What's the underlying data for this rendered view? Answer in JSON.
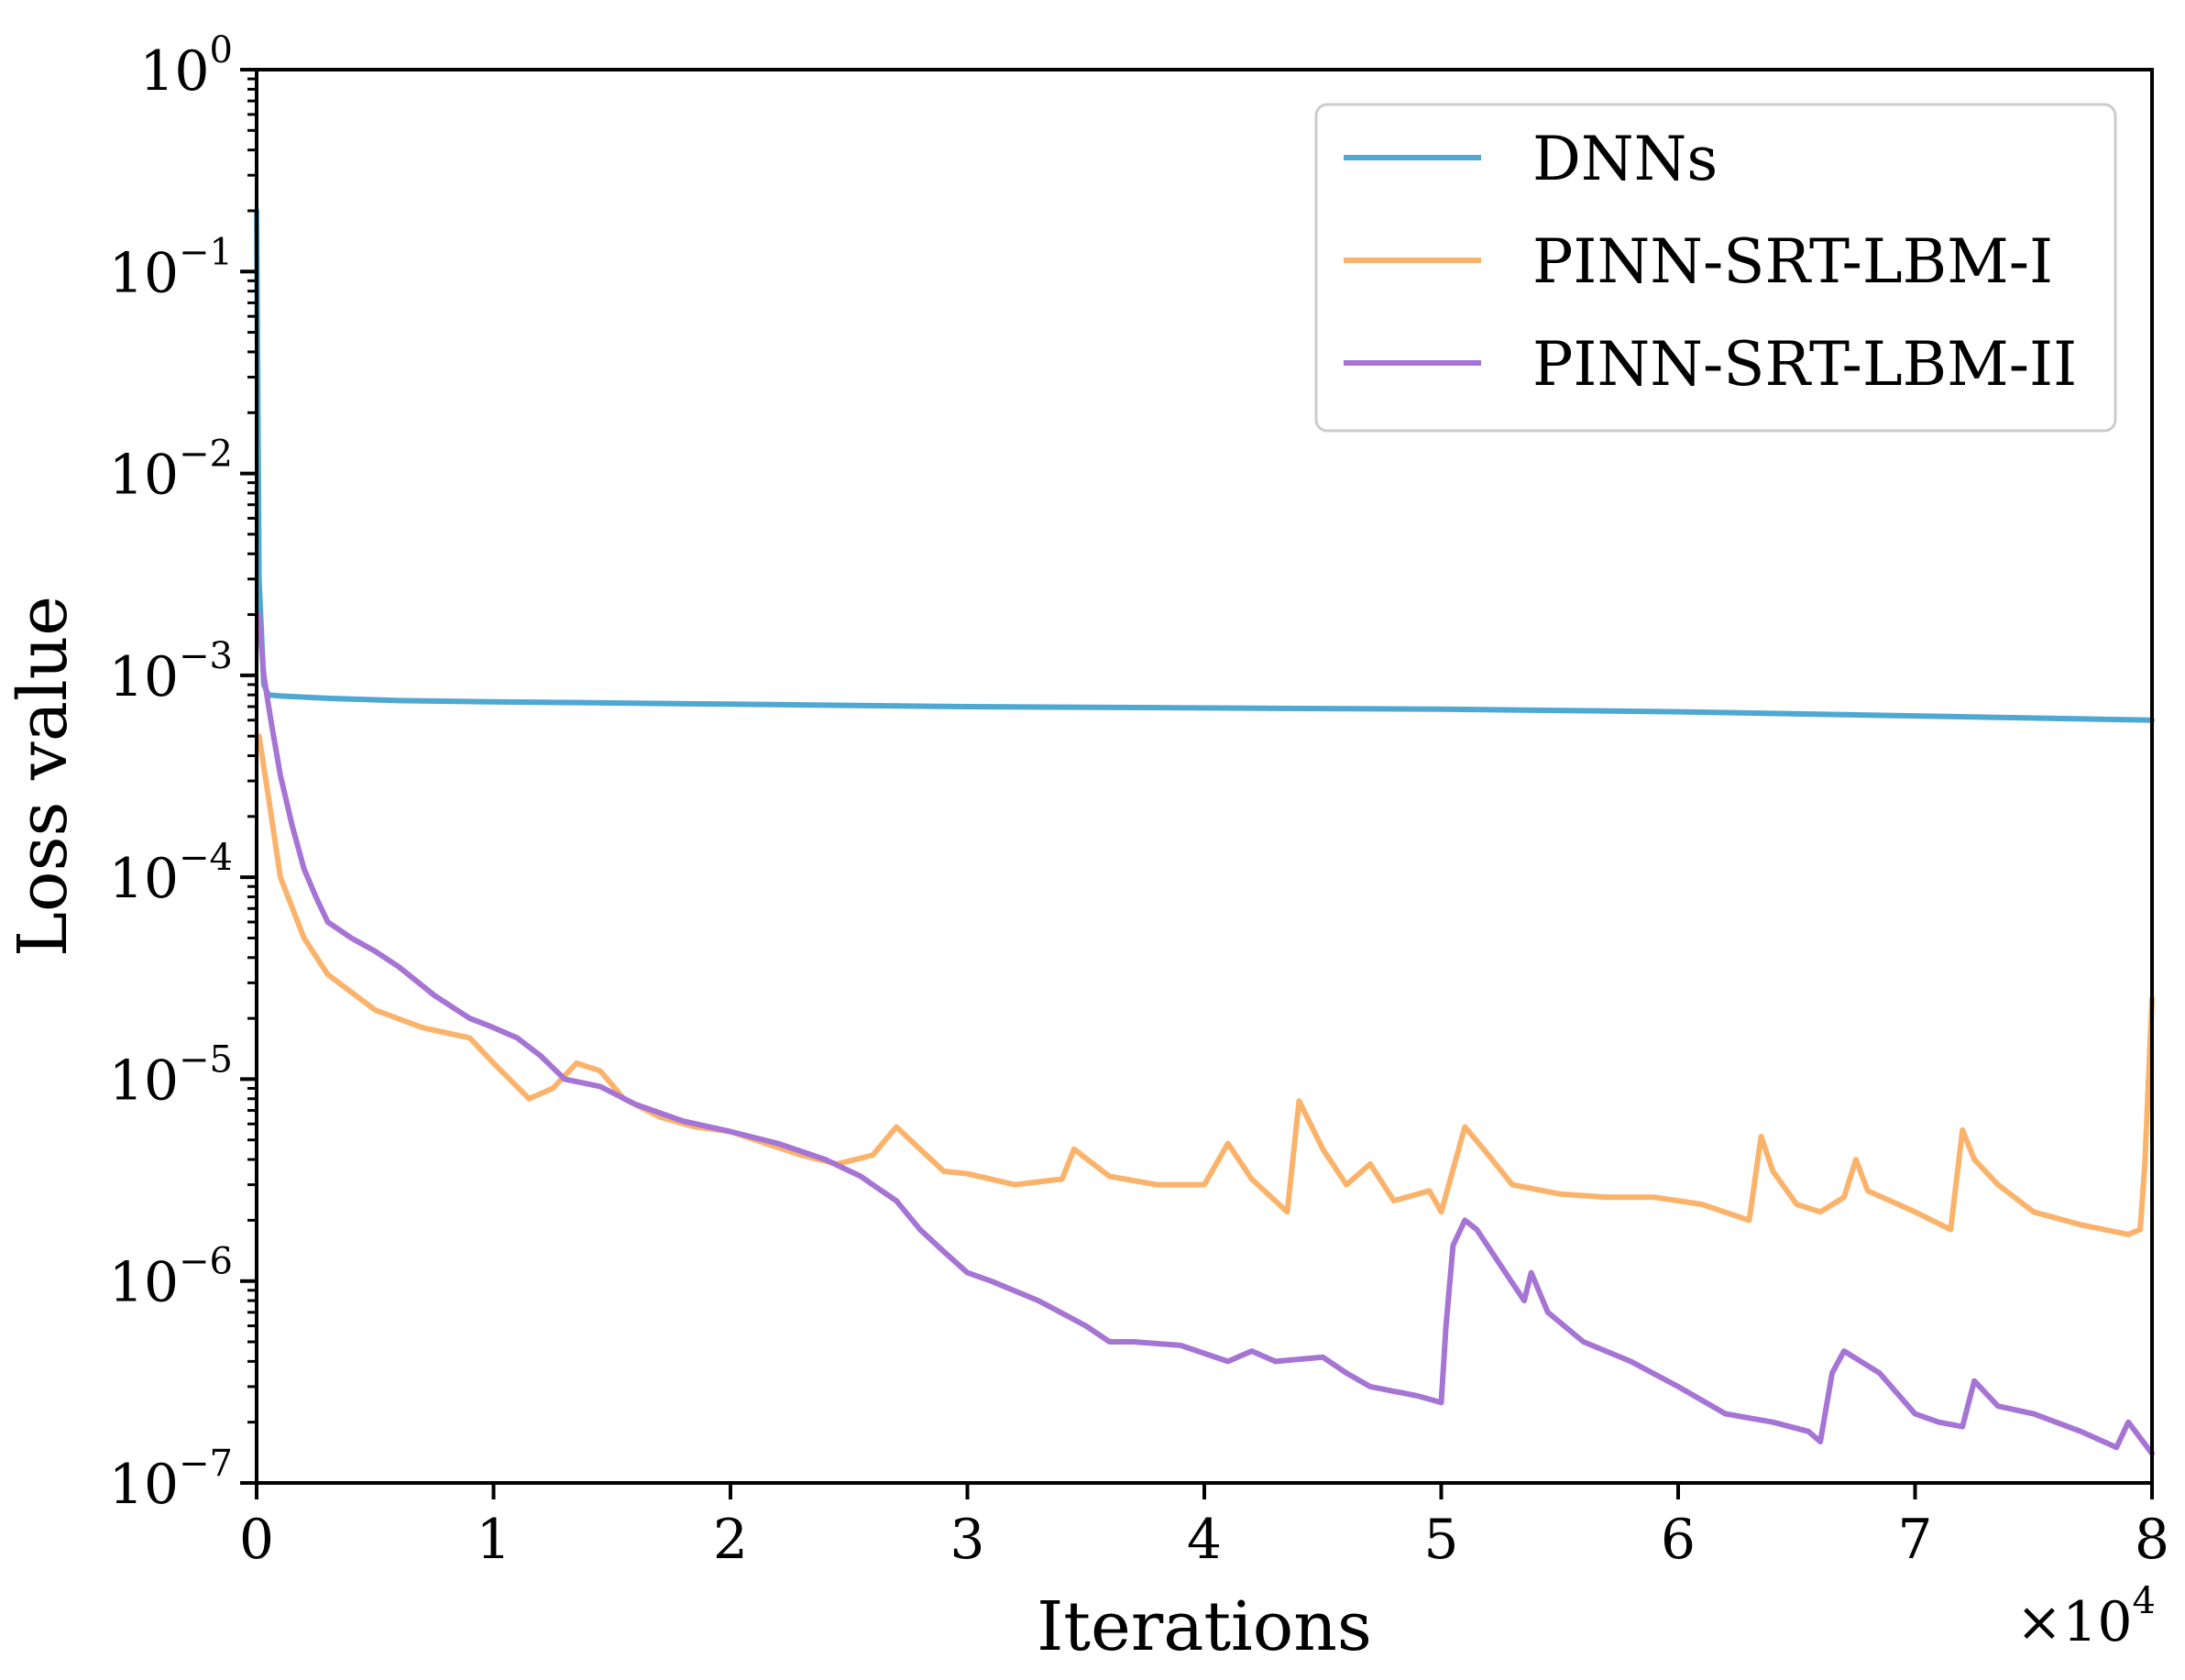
{
  "chart_data": {
    "type": "line",
    "title": "",
    "xlabel": "Iterations",
    "ylabel": "Loss value",
    "x_scale_note": "×10",
    "x_scale_exponent": "4",
    "xlim": [
      0,
      8
    ],
    "ylim": [
      1e-07,
      1
    ],
    "yscale": "log",
    "grid": false,
    "legend_position": "top-right",
    "x_ticks": [
      {
        "value": 0,
        "label": "0"
      },
      {
        "value": 1,
        "label": "1"
      },
      {
        "value": 2,
        "label": "2"
      },
      {
        "value": 3,
        "label": "3"
      },
      {
        "value": 4,
        "label": "4"
      },
      {
        "value": 5,
        "label": "5"
      },
      {
        "value": 6,
        "label": "6"
      },
      {
        "value": 7,
        "label": "7"
      },
      {
        "value": 8,
        "label": "8"
      }
    ],
    "y_ticks": [
      {
        "value": 1,
        "base": "10",
        "exp": "0"
      },
      {
        "value": 0.1,
        "base": "10",
        "exp": "−1"
      },
      {
        "value": 0.01,
        "base": "10",
        "exp": "−2"
      },
      {
        "value": 0.001,
        "base": "10",
        "exp": "−3"
      },
      {
        "value": 0.0001,
        "base": "10",
        "exp": "−4"
      },
      {
        "value": 1e-05,
        "base": "10",
        "exp": "−5"
      },
      {
        "value": 1e-06,
        "base": "10",
        "exp": "−6"
      },
      {
        "value": 1e-07,
        "base": "10",
        "exp": "−7"
      }
    ],
    "series": [
      {
        "name": "DNNs",
        "color": "#4fa8d1",
        "x": [
          0,
          0.01,
          0.03,
          0.05,
          0.1,
          0.3,
          0.6,
          1,
          2,
          3,
          4,
          5,
          6,
          7,
          8
        ],
        "y": [
          0.2,
          0.003,
          0.0009,
          0.0008,
          0.00079,
          0.00077,
          0.00075,
          0.00074,
          0.00072,
          0.0007,
          0.00069,
          0.00068,
          0.00066,
          0.00063,
          0.0006
        ]
      },
      {
        "name": "PINN-SRT-LBM-I",
        "color": "#fbb36b",
        "x": [
          0.01,
          0.05,
          0.1,
          0.2,
          0.3,
          0.5,
          0.7,
          0.9,
          1.0,
          1.15,
          1.25,
          1.35,
          1.45,
          1.55,
          1.7,
          1.85,
          2.0,
          2.15,
          2.3,
          2.45,
          2.6,
          2.7,
          2.8,
          2.9,
          3.0,
          3.2,
          3.4,
          3.45,
          3.6,
          3.8,
          4.0,
          4.1,
          4.2,
          4.35,
          4.4,
          4.5,
          4.6,
          4.7,
          4.8,
          4.95,
          5.0,
          5.1,
          5.2,
          5.3,
          5.5,
          5.7,
          5.9,
          6.1,
          6.3,
          6.35,
          6.4,
          6.5,
          6.6,
          6.7,
          6.75,
          6.8,
          7.0,
          7.15,
          7.2,
          7.25,
          7.35,
          7.5,
          7.7,
          7.9,
          7.95,
          7.97,
          8.0
        ],
        "y": [
          0.0005,
          0.00025,
          0.0001,
          5e-05,
          3.3e-05,
          2.2e-05,
          1.8e-05,
          1.6e-05,
          1.2e-05,
          8e-06,
          9e-06,
          1.2e-05,
          1.1e-05,
          8e-06,
          6.5e-06,
          5.8e-06,
          5.5e-06,
          4.8e-06,
          4.2e-06,
          3.8e-06,
          4.2e-06,
          5.8e-06,
          4.5e-06,
          3.5e-06,
          3.4e-06,
          3e-06,
          3.2e-06,
          4.5e-06,
          3.3e-06,
          3e-06,
          3e-06,
          4.8e-06,
          3.2e-06,
          2.2e-06,
          7.8e-06,
          4.5e-06,
          3e-06,
          3.8e-06,
          2.5e-06,
          2.8e-06,
          2.2e-06,
          5.8e-06,
          4.2e-06,
          3e-06,
          2.7e-06,
          2.6e-06,
          2.6e-06,
          2.4e-06,
          2e-06,
          5.2e-06,
          3.5e-06,
          2.4e-06,
          2.2e-06,
          2.6e-06,
          4e-06,
          2.8e-06,
          2.2e-06,
          1.8e-06,
          5.6e-06,
          4e-06,
          3e-06,
          2.2e-06,
          1.9e-06,
          1.7e-06,
          1.8e-06,
          3.8e-06,
          2.5e-05
        ]
      },
      {
        "name": "PINN-SRT-LBM-II",
        "color": "#a574d4",
        "x": [
          0.01,
          0.03,
          0.06,
          0.1,
          0.15,
          0.2,
          0.25,
          0.3,
          0.4,
          0.5,
          0.6,
          0.75,
          0.9,
          1.0,
          1.1,
          1.2,
          1.3,
          1.45,
          1.6,
          1.8,
          2.0,
          2.2,
          2.4,
          2.55,
          2.6,
          2.7,
          2.8,
          2.9,
          3.0,
          3.1,
          3.3,
          3.5,
          3.6,
          3.7,
          3.9,
          4.1,
          4.2,
          4.3,
          4.5,
          4.6,
          4.7,
          4.9,
          5.0,
          5.02,
          5.05,
          5.1,
          5.15,
          5.25,
          5.35,
          5.38,
          5.45,
          5.6,
          5.8,
          6.0,
          6.2,
          6.4,
          6.55,
          6.6,
          6.65,
          6.7,
          6.85,
          7.0,
          7.1,
          7.2,
          7.25,
          7.35,
          7.5,
          7.7,
          7.85,
          7.9,
          8.0
        ],
        "y": [
          0.002,
          0.001,
          0.0006,
          0.00032,
          0.00018,
          0.00011,
          8e-05,
          6e-05,
          5e-05,
          4.3e-05,
          3.6e-05,
          2.6e-05,
          2e-05,
          1.8e-05,
          1.6e-05,
          1.3e-05,
          1e-05,
          9.2e-06,
          7.5e-06,
          6.2e-06,
          5.5e-06,
          4.8e-06,
          4e-06,
          3.3e-06,
          3e-06,
          2.5e-06,
          1.8e-06,
          1.4e-06,
          1.1e-06,
          1e-06,
          8e-07,
          6e-07,
          5e-07,
          5e-07,
          4.8e-07,
          4e-07,
          4.5e-07,
          4e-07,
          4.2e-07,
          3.5e-07,
          3e-07,
          2.7e-07,
          2.5e-07,
          6e-07,
          1.5e-06,
          2e-06,
          1.8e-06,
          1.2e-06,
          8e-07,
          1.1e-06,
          7e-07,
          5e-07,
          4e-07,
          3e-07,
          2.2e-07,
          2e-07,
          1.8e-07,
          1.6e-07,
          3.5e-07,
          4.5e-07,
          3.5e-07,
          2.2e-07,
          2e-07,
          1.9e-07,
          3.2e-07,
          2.4e-07,
          2.2e-07,
          1.8e-07,
          1.5e-07,
          2e-07,
          1.4e-07
        ]
      }
    ]
  }
}
